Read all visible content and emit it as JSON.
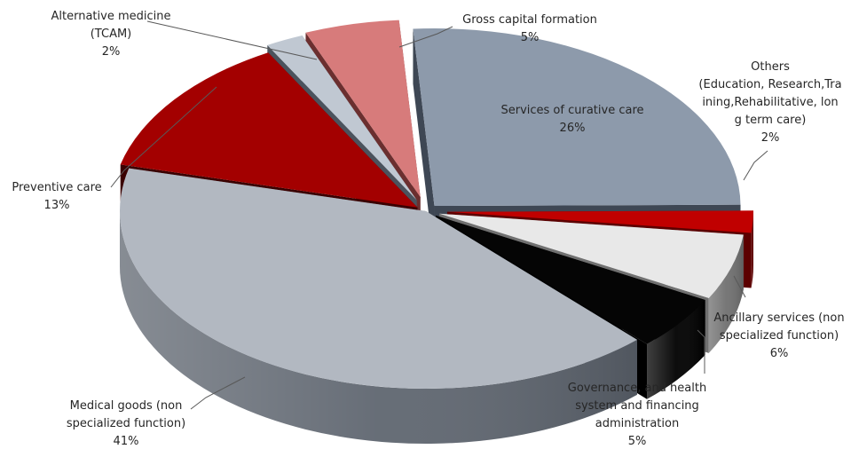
{
  "chart_data": {
    "type": "pie",
    "title": "",
    "three_d": true,
    "exploded": true,
    "legend": "none",
    "slices": [
      {
        "label": "Services of curative care",
        "value": 26,
        "value_label": "26%",
        "color": "#8d9aab",
        "side_color": "#3e4754",
        "label_inside": true
      },
      {
        "label": "Others (Education, Research,Training,Rehabilitative, long term care)",
        "label_lines": [
          "Others",
          "(Education, Research,Tra",
          "ining,Rehabilitative, lon",
          "g term care)"
        ],
        "value": 2,
        "value_label": "2%",
        "color": "#c00000",
        "side_color": "#5c0000"
      },
      {
        "label": "Ancillary services (non specialized function)",
        "label_lines": [
          "Ancillary services (non",
          "specialized function)"
        ],
        "value": 6,
        "value_label": "6%",
        "color": "#e8e8e8",
        "side_color": "#707070"
      },
      {
        "label": "Governance, and health system and financing administration",
        "label_lines": [
          "Governance, and health",
          "system and financing",
          "administration"
        ],
        "value": 5,
        "value_label": "5%",
        "color": "#050505",
        "side_color": "#000000"
      },
      {
        "label": "Medical goods (non specialized function)",
        "label_lines": [
          "Medical goods (non",
          "specialized function)"
        ],
        "value": 41,
        "value_label": "41%",
        "color": "#b2b8c1",
        "side_color": "#5f6670"
      },
      {
        "label": "Preventive care",
        "label_lines": [
          "Preventive care"
        ],
        "value": 13,
        "value_label": "13%",
        "color": "#a30000",
        "side_color": "#3a0000"
      },
      {
        "label": "Alternative medicine (TCAM)",
        "label_lines": [
          "Alternative medicine",
          "(TCAM)"
        ],
        "value": 2,
        "value_label": "2%",
        "color": "#c0c8d2",
        "side_color": "#4b535d"
      },
      {
        "label": "Gross capital formation",
        "label_lines": [
          "Gross capital formation"
        ],
        "value": 5,
        "value_label": "5%",
        "color": "#d77b7b",
        "side_color": "#6b2f2f"
      }
    ]
  }
}
